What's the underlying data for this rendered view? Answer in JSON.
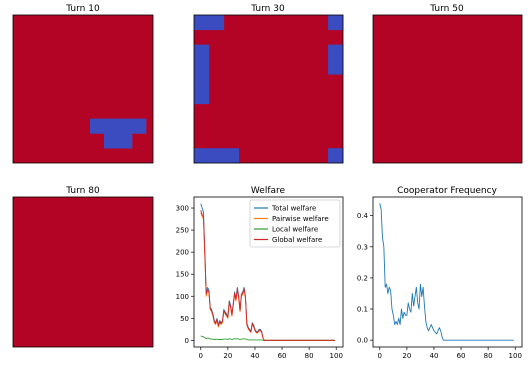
{
  "colors": {
    "defector": "#b40426",
    "cooperator": "#3b4cc0",
    "total": "#1f77b4",
    "pairwise": "#ff7f0e",
    "local": "#2ca02c",
    "global": "#d62728"
  },
  "grids": [
    {
      "title": "Turn 10",
      "size": 20,
      "coop_cells": [
        [
          11,
          14
        ],
        [
          12,
          14
        ],
        [
          13,
          14
        ],
        [
          14,
          14
        ],
        [
          15,
          14
        ],
        [
          16,
          14
        ],
        [
          17,
          14
        ],
        [
          18,
          14
        ],
        [
          11,
          15
        ],
        [
          12,
          15
        ],
        [
          13,
          15
        ],
        [
          14,
          15
        ],
        [
          15,
          15
        ],
        [
          16,
          15
        ],
        [
          17,
          15
        ],
        [
          18,
          15
        ],
        [
          13,
          16
        ],
        [
          14,
          16
        ],
        [
          15,
          16
        ],
        [
          16,
          16
        ],
        [
          13,
          17
        ],
        [
          14,
          17
        ],
        [
          15,
          17
        ],
        [
          16,
          17
        ]
      ]
    },
    {
      "title": "Turn 30",
      "size": 20,
      "coop_cells": [
        [
          0,
          0
        ],
        [
          1,
          0
        ],
        [
          2,
          0
        ],
        [
          3,
          0
        ],
        [
          0,
          1
        ],
        [
          1,
          1
        ],
        [
          2,
          1
        ],
        [
          3,
          1
        ],
        [
          18,
          0
        ],
        [
          19,
          0
        ],
        [
          18,
          1
        ],
        [
          19,
          1
        ],
        [
          0,
          4
        ],
        [
          1,
          4
        ],
        [
          0,
          5
        ],
        [
          1,
          5
        ],
        [
          0,
          6
        ],
        [
          1,
          6
        ],
        [
          0,
          7
        ],
        [
          1,
          7
        ],
        [
          0,
          8
        ],
        [
          1,
          8
        ],
        [
          0,
          9
        ],
        [
          1,
          9
        ],
        [
          0,
          10
        ],
        [
          1,
          10
        ],
        [
          0,
          11
        ],
        [
          1,
          11
        ],
        [
          18,
          4
        ],
        [
          19,
          4
        ],
        [
          18,
          5
        ],
        [
          19,
          5
        ],
        [
          18,
          6
        ],
        [
          19,
          6
        ],
        [
          18,
          7
        ],
        [
          19,
          7
        ],
        [
          0,
          18
        ],
        [
          1,
          18
        ],
        [
          2,
          18
        ],
        [
          3,
          18
        ],
        [
          4,
          18
        ],
        [
          5,
          18
        ],
        [
          0,
          19
        ],
        [
          1,
          19
        ],
        [
          2,
          19
        ],
        [
          3,
          19
        ],
        [
          4,
          19
        ],
        [
          5,
          19
        ],
        [
          18,
          18
        ],
        [
          19,
          18
        ],
        [
          18,
          19
        ],
        [
          19,
          19
        ]
      ]
    },
    {
      "title": "Turn 50",
      "size": 20,
      "coop_cells": []
    },
    {
      "title": "Turn 80",
      "size": 20,
      "coop_cells": []
    }
  ],
  "chart_data": [
    {
      "type": "line",
      "title": "Welfare",
      "xlabel": "",
      "ylabel": "",
      "xlim": [
        -5,
        105
      ],
      "ylim": [
        -15,
        325
      ],
      "xticks": [
        0,
        20,
        40,
        60,
        80,
        100
      ],
      "yticks": [
        0,
        50,
        100,
        150,
        200,
        250,
        300
      ],
      "legend": "top-right",
      "x": [
        0,
        1,
        2,
        3,
        4,
        5,
        6,
        7,
        8,
        9,
        10,
        11,
        12,
        13,
        14,
        15,
        16,
        17,
        18,
        19,
        20,
        21,
        22,
        23,
        24,
        25,
        26,
        27,
        28,
        29,
        30,
        31,
        32,
        33,
        34,
        35,
        36,
        37,
        38,
        39,
        40,
        41,
        42,
        43,
        44,
        45,
        46,
        47,
        48,
        49,
        50,
        55,
        60,
        65,
        70,
        75,
        80,
        85,
        90,
        95,
        99
      ],
      "series": [
        {
          "name": "Total welfare",
          "color_key": "total",
          "values": [
            310,
            300,
            290,
            200,
            110,
            120,
            115,
            75,
            70,
            60,
            45,
            40,
            50,
            35,
            45,
            40,
            45,
            70,
            65,
            60,
            55,
            90,
            80,
            60,
            85,
            110,
            95,
            120,
            100,
            70,
            105,
            110,
            120,
            100,
            40,
            30,
            25,
            20,
            40,
            35,
            25,
            20,
            20,
            25,
            25,
            20,
            5,
            0,
            0,
            0,
            0,
            0,
            0,
            0,
            0,
            0,
            0,
            0,
            0,
            0,
            0
          ]
        },
        {
          "name": "Pairwise welfare",
          "color_key": "pairwise",
          "values": [
            290,
            280,
            275,
            190,
            100,
            112,
            108,
            70,
            65,
            55,
            40,
            36,
            46,
            30,
            40,
            36,
            40,
            64,
            60,
            55,
            50,
            84,
            75,
            55,
            80,
            104,
            90,
            114,
            95,
            65,
            100,
            104,
            114,
            95,
            35,
            26,
            22,
            18,
            36,
            31,
            22,
            17,
            17,
            22,
            22,
            17,
            4,
            0,
            0,
            0,
            0,
            0,
            0,
            0,
            0,
            0,
            0,
            0,
            0,
            0,
            0
          ]
        },
        {
          "name": "Local welfare",
          "color_key": "local",
          "values": [
            10,
            9,
            8,
            6,
            4,
            5,
            5,
            3,
            3,
            3,
            2,
            2,
            3,
            2,
            2,
            2,
            2,
            3,
            3,
            3,
            2,
            4,
            3,
            2,
            3,
            4,
            3,
            4,
            3,
            2,
            3,
            3,
            4,
            3,
            2,
            1,
            1,
            1,
            1,
            1,
            1,
            1,
            1,
            1,
            1,
            1,
            0,
            0,
            0,
            0,
            0,
            0,
            0,
            0,
            0,
            0,
            0,
            0,
            0,
            0,
            0
          ]
        },
        {
          "name": "Global welfare",
          "color_key": "global",
          "values": [
            295,
            285,
            280,
            195,
            105,
            115,
            110,
            72,
            67,
            57,
            42,
            38,
            48,
            33,
            43,
            38,
            43,
            67,
            62,
            57,
            52,
            87,
            77,
            57,
            82,
            107,
            92,
            117,
            97,
            67,
            102,
            107,
            117,
            97,
            37,
            28,
            23,
            19,
            38,
            33,
            23,
            18,
            18,
            23,
            23,
            18,
            5,
            0,
            0,
            0,
            0,
            0,
            0,
            0,
            0,
            0,
            0,
            0,
            0,
            0,
            0
          ]
        }
      ]
    },
    {
      "type": "line",
      "title": "Cooperator Frequency",
      "xlabel": "",
      "ylabel": "",
      "xlim": [
        -5,
        105
      ],
      "ylim": [
        -0.022,
        0.46
      ],
      "xticks": [
        0,
        20,
        40,
        60,
        80,
        100
      ],
      "yticks": [
        0.0,
        0.1,
        0.2,
        0.3,
        0.4
      ],
      "x": [
        0,
        1,
        2,
        3,
        4,
        5,
        6,
        7,
        8,
        9,
        10,
        11,
        12,
        13,
        14,
        15,
        16,
        17,
        18,
        19,
        20,
        21,
        22,
        23,
        24,
        25,
        26,
        27,
        28,
        29,
        30,
        31,
        32,
        33,
        34,
        35,
        36,
        37,
        38,
        39,
        40,
        41,
        42,
        43,
        44,
        45,
        46,
        47,
        48,
        49,
        50,
        55,
        60,
        65,
        70,
        75,
        80,
        85,
        90,
        95,
        99
      ],
      "series": [
        {
          "color_key": "total",
          "values": [
            0.44,
            0.42,
            0.33,
            0.3,
            0.17,
            0.18,
            0.15,
            0.17,
            0.16,
            0.1,
            0.08,
            0.05,
            0.06,
            0.05,
            0.07,
            0.05,
            0.1,
            0.07,
            0.09,
            0.08,
            0.08,
            0.12,
            0.1,
            0.09,
            0.15,
            0.11,
            0.14,
            0.17,
            0.12,
            0.1,
            0.18,
            0.14,
            0.17,
            0.11,
            0.06,
            0.04,
            0.03,
            0.04,
            0.05,
            0.04,
            0.03,
            0.025,
            0.02,
            0.03,
            0.04,
            0.03,
            0.01,
            0,
            0,
            0,
            0,
            0,
            0,
            0,
            0,
            0,
            0,
            0,
            0,
            0,
            0
          ]
        }
      ]
    }
  ]
}
